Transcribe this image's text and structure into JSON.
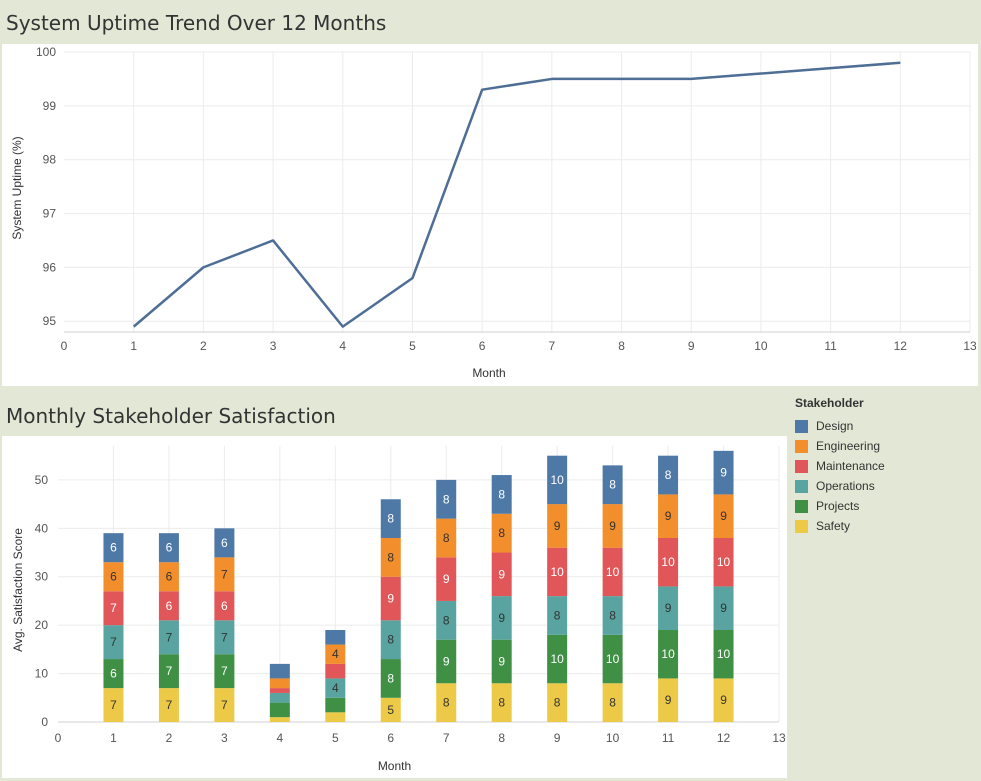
{
  "top_title": "System Uptime Trend Over 12 Months",
  "bottom_title": "Monthly Stakeholder Satisfaction",
  "legend": {
    "title": "Stakeholder",
    "items": [
      {
        "label": "Design",
        "color": "#4e79a7"
      },
      {
        "label": "Engineering",
        "color": "#f28e2b"
      },
      {
        "label": "Maintenance",
        "color": "#e15759"
      },
      {
        "label": "Operations",
        "color": "#59a4a0"
      },
      {
        "label": "Projects",
        "color": "#3f8f45"
      },
      {
        "label": "Safety",
        "color": "#edc948"
      }
    ]
  },
  "chart_data": [
    {
      "type": "line",
      "title": "System Uptime Trend Over 12 Months",
      "xlabel": "Month",
      "ylabel": "System Uptime (%)",
      "x": [
        1,
        2,
        3,
        4,
        5,
        6,
        7,
        8,
        9,
        10,
        11,
        12
      ],
      "series": [
        {
          "values": [
            94.9,
            96.0,
            96.5,
            94.9,
            95.8,
            99.3,
            99.5,
            99.5,
            99.5,
            99.6,
            99.7,
            99.8
          ],
          "color": "#4e6e95"
        }
      ],
      "xlim": [
        0,
        13
      ],
      "ylim": [
        94.8,
        100
      ],
      "x_ticks": [
        0,
        1,
        2,
        3,
        4,
        5,
        6,
        7,
        8,
        9,
        10,
        11,
        12,
        13
      ],
      "y_ticks": [
        95,
        96,
        97,
        98,
        99,
        100
      ],
      "grid": true
    },
    {
      "type": "bar",
      "stacked": true,
      "title": "Monthly Stakeholder Satisfaction",
      "xlabel": "Month",
      "ylabel": "Avg. Satisfaction Score",
      "x": [
        1,
        2,
        3,
        4,
        5,
        6,
        7,
        8,
        9,
        10,
        11,
        12
      ],
      "series": [
        {
          "name": "Safety",
          "color": "#edc948",
          "values": [
            7,
            7,
            7,
            1,
            2,
            5,
            8,
            8,
            8,
            8,
            9,
            9
          ]
        },
        {
          "name": "Projects",
          "color": "#3f8f45",
          "values": [
            6,
            7,
            7,
            3,
            3,
            8,
            9,
            9,
            10,
            10,
            10,
            10
          ]
        },
        {
          "name": "Operations",
          "color": "#59a4a0",
          "values": [
            7,
            7,
            7,
            2,
            4,
            8,
            8,
            9,
            8,
            8,
            9,
            9
          ]
        },
        {
          "name": "Maintenance",
          "color": "#e15759",
          "values": [
            7,
            6,
            6,
            1,
            3,
            9,
            9,
            9,
            10,
            10,
            10,
            10
          ]
        },
        {
          "name": "Engineering",
          "color": "#f28e2b",
          "values": [
            6,
            6,
            7,
            2,
            4,
            8,
            8,
            8,
            9,
            9,
            9,
            9
          ]
        },
        {
          "name": "Design",
          "color": "#4e79a7",
          "values": [
            6,
            6,
            6,
            3,
            3,
            8,
            8,
            8,
            10,
            8,
            8,
            9
          ]
        }
      ],
      "xlim": [
        0,
        13
      ],
      "ylim": [
        0,
        57
      ],
      "x_ticks": [
        0,
        1,
        2,
        3,
        4,
        5,
        6,
        7,
        8,
        9,
        10,
        11,
        12,
        13
      ],
      "y_ticks": [
        0,
        10,
        20,
        30,
        40,
        50
      ],
      "grid": true,
      "legend_position": "right"
    }
  ]
}
